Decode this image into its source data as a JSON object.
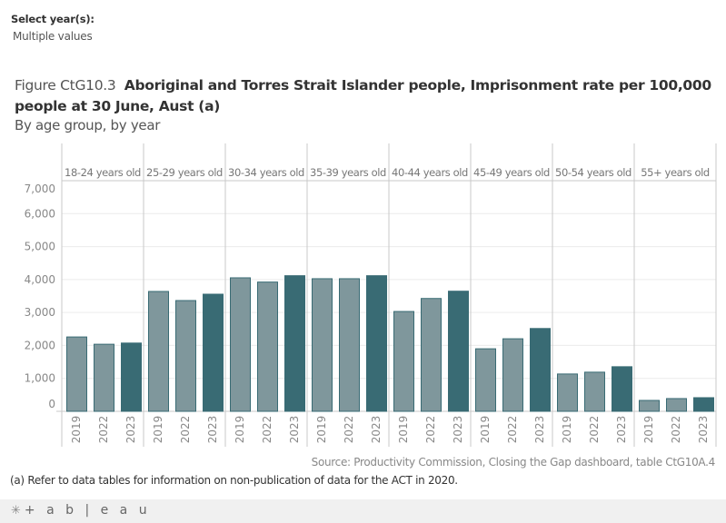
{
  "filter": {
    "label": "Select year(s):",
    "value": "Multiple values"
  },
  "title": {
    "figure": "Figure CtG10.3",
    "main": "Aboriginal and Torres Strait Islander people, Imprisonment rate per 100,000 people at 30 June, Aust (a)",
    "subtitle": "By age group, by year"
  },
  "colors": {
    "earlier_years": "#7f979c",
    "latest_year": "#396b74",
    "bar_outline": "#396b74",
    "gridline": "#ececec",
    "divider": "#c8c8c8"
  },
  "chart_data": {
    "type": "bar",
    "title": "Aboriginal and Torres Strait Islander people, Imprisonment rate per 100,000 people at 30 June, Aust (a)",
    "subtitle": "By age group, by year",
    "xlabel": "",
    "ylabel": "",
    "ylim": [
      0,
      7000
    ],
    "yticks": [
      0,
      1000,
      2000,
      3000,
      4000,
      5000,
      6000,
      7000
    ],
    "ytick_labels": [
      "0",
      "1,000",
      "2,000",
      "3,000",
      "4,000",
      "5,000",
      "6,000",
      "7,000"
    ],
    "grid": true,
    "legend": "none",
    "years": [
      "2019",
      "2022",
      "2023"
    ],
    "groups": [
      {
        "name": "18-24 years old",
        "values": [
          2257,
          2036,
          2072
        ]
      },
      {
        "name": "25-29 years old",
        "values": [
          3638,
          3362,
          3555
        ]
      },
      {
        "name": "30-34 years old",
        "values": [
          4052,
          3923,
          4116
        ]
      },
      {
        "name": "35-39 years old",
        "values": [
          4025,
          4025,
          4116
        ]
      },
      {
        "name": "40-44 years old",
        "values": [
          3030,
          3425,
          3646
        ]
      },
      {
        "name": "45-49 years old",
        "values": [
          1898,
          2202,
          2514
        ]
      },
      {
        "name": "50-54 years old",
        "values": [
          1133,
          1188,
          1354
        ]
      },
      {
        "name": "55+ years old",
        "values": [
          331,
          387,
          414
        ]
      }
    ]
  },
  "source": "Source: Productivity Commission, Closing the Gap dashboard, table CtG10A.4",
  "note": "(a) Refer to data tables for information on non-publication of data for the ACT in 2020.",
  "footer": {
    "logo_icon": "tableau-logo-icon",
    "logo_text": "+ a b | e a u"
  }
}
